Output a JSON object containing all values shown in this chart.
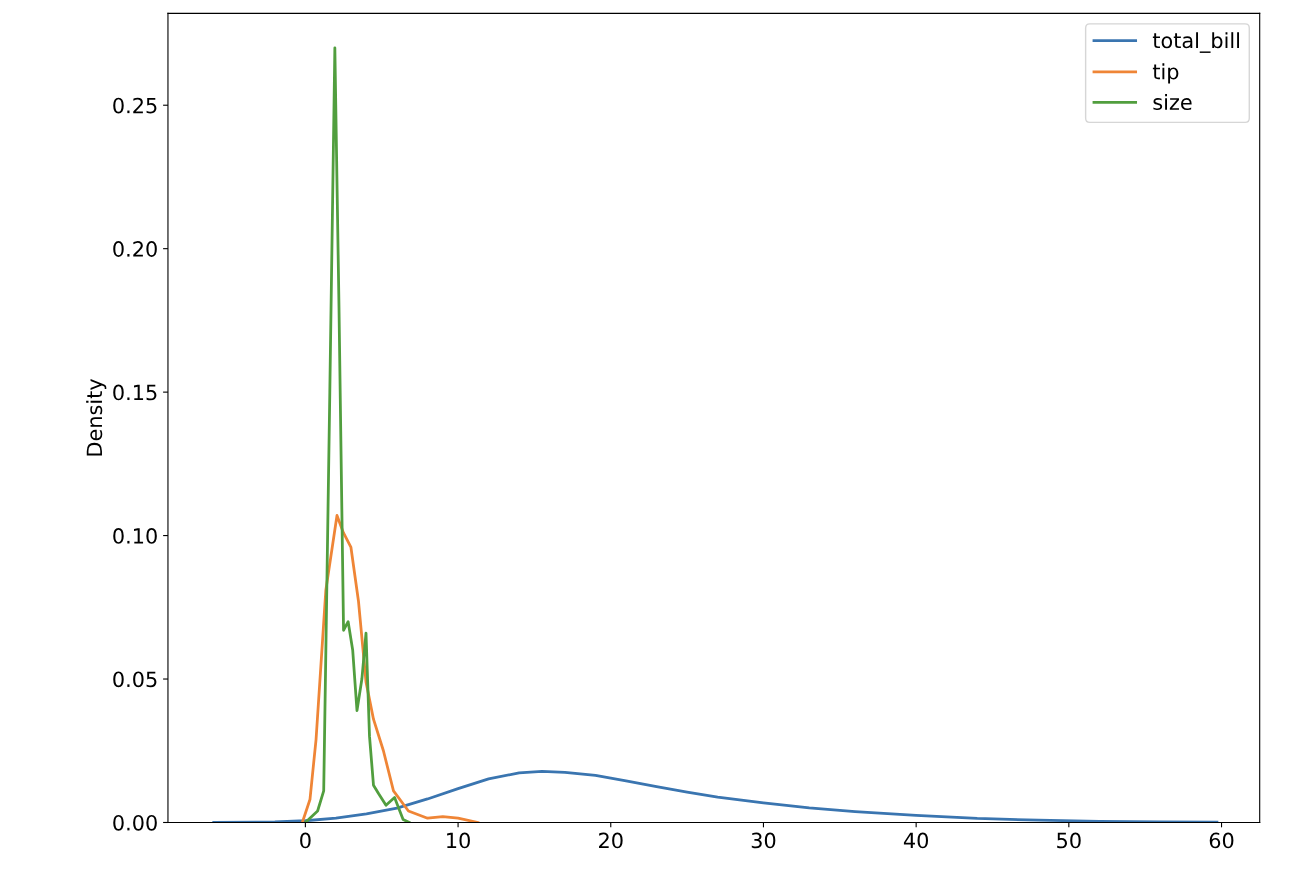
{
  "chart_data": {
    "type": "line",
    "ylabel": "Density",
    "xlim": [
      -9,
      62.5
    ],
    "xticks": [
      0,
      10,
      20,
      30,
      40,
      50,
      60
    ],
    "ylim": [
      0,
      0.282
    ],
    "yticks": [
      {
        "value": 0,
        "label": "0.00"
      },
      {
        "value": 0.05,
        "label": "0.05"
      },
      {
        "value": 0.1,
        "label": "0.10"
      },
      {
        "value": 0.15,
        "label": "0.15"
      },
      {
        "value": 0.2,
        "label": "0.20"
      },
      {
        "value": 0.25,
        "label": "0.25"
      }
    ],
    "grid": false,
    "legend": "top right",
    "series": [
      {
        "name": "total_bill",
        "color": "#3a75b0",
        "x": [
          -6,
          -2,
          0,
          2,
          4,
          6,
          8,
          10,
          12,
          14,
          15.5,
          17,
          19,
          21,
          23,
          25,
          27,
          30,
          33,
          36,
          40,
          44,
          48,
          52,
          56,
          59.7
        ],
        "values": [
          0,
          0.0002,
          0.0006,
          0.0015,
          0.003,
          0.005,
          0.0082,
          0.0118,
          0.0152,
          0.0173,
          0.0178,
          0.0175,
          0.0164,
          0.0145,
          0.0125,
          0.0106,
          0.0088,
          0.0068,
          0.0051,
          0.0038,
          0.0025,
          0.0014,
          0.0008,
          0.0004,
          0.0002,
          0.0001
        ]
      },
      {
        "name": "tip",
        "color": "#ef8536",
        "x": [
          -0.2,
          0.3,
          0.7,
          1.34,
          2.07,
          2.49,
          2.98,
          3.48,
          3.97,
          4.46,
          5.11,
          5.77,
          6.75,
          8,
          9,
          10,
          11.3
        ],
        "values": [
          0,
          0.008,
          0.029,
          0.081,
          0.107,
          0.101,
          0.096,
          0.077,
          0.049,
          0.036,
          0.025,
          0.011,
          0.004,
          0.0015,
          0.002,
          0.0015,
          0
        ]
      },
      {
        "name": "size",
        "color": "#519e3e",
        "x": [
          0,
          0.8,
          1.2,
          1.6,
          1.93,
          2.2,
          2.5,
          2.8,
          3.1,
          3.38,
          3.7,
          3.97,
          4.2,
          4.46,
          4.8,
          5.28,
          5.84,
          6.4,
          6.8
        ],
        "values": [
          0,
          0.004,
          0.011,
          0.15,
          0.27,
          0.18,
          0.067,
          0.07,
          0.06,
          0.039,
          0.05,
          0.066,
          0.03,
          0.013,
          0.01,
          0.006,
          0.0087,
          0.001,
          0
        ]
      }
    ]
  }
}
